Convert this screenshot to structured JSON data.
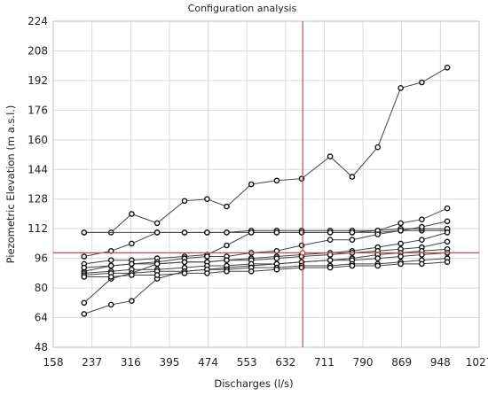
{
  "chart_data": {
    "type": "line",
    "title": "Configuration analysis",
    "xlabel": "Discharges (l/s)",
    "ylabel": "Piezometric Elevation (m a.s.l.)",
    "xlim": [
      158,
      1027
    ],
    "ylim": [
      48,
      224
    ],
    "xticks": [
      158,
      237,
      316,
      395,
      474,
      553,
      632,
      711,
      790,
      869,
      948,
      1027
    ],
    "yticks": [
      48,
      64,
      80,
      96,
      112,
      128,
      144,
      160,
      176,
      192,
      208,
      224
    ],
    "grid": true,
    "legend": "none",
    "crosshair": {
      "x": 667,
      "y": 99,
      "color": "#c0504d"
    },
    "x": [
      221,
      276,
      318,
      370,
      426,
      472,
      512,
      562,
      614,
      665,
      723,
      768,
      820,
      867,
      910,
      962
    ],
    "series": [
      {
        "values": [
          110,
          110,
          120,
          115,
          127,
          128,
          124,
          136,
          138,
          139,
          151,
          140,
          156,
          188,
          191,
          199
        ]
      },
      {
        "values": [
          110,
          null,
          null,
          110,
          110,
          110,
          110,
          110,
          110,
          110,
          110,
          110,
          110,
          111,
          111,
          111
        ]
      },
      {
        "values": [
          97,
          100,
          104,
          110,
          110,
          110,
          110,
          111,
          111,
          111,
          111,
          111,
          111,
          112,
          112,
          112
        ]
      },
      {
        "values": [
          93,
          95,
          95,
          96,
          97,
          98,
          103,
          110,
          110,
          110,
          110,
          110,
          111,
          115,
          117,
          123
        ]
      },
      {
        "values": [
          89,
          92,
          93,
          94,
          96,
          97,
          97,
          99,
          100,
          103,
          106,
          106,
          109,
          111,
          113,
          116
        ]
      },
      {
        "values": [
          72,
          85,
          88,
          93,
          94,
          94,
          95,
          96,
          97,
          98,
          99,
          100,
          102,
          104,
          106,
          110
        ]
      },
      {
        "values": [
          91,
          92,
          93,
          93,
          94,
          94,
          95,
          95,
          96,
          97,
          98,
          99,
          100,
          101,
          102,
          105
        ]
      },
      {
        "values": [
          66,
          71,
          73,
          85,
          89,
          90,
          91,
          92,
          93,
          94,
          95,
          96,
          98,
          99,
          100,
          101
        ]
      },
      {
        "values": [
          88,
          89,
          90,
          90,
          91,
          92,
          92,
          93,
          93,
          94,
          95,
          95,
          96,
          97,
          98,
          99
        ]
      },
      {
        "values": [
          87,
          88,
          88,
          89,
          89,
          90,
          90,
          91,
          91,
          92,
          92,
          93,
          93,
          94,
          95,
          96
        ]
      },
      {
        "values": [
          86,
          86,
          87,
          87,
          88,
          88,
          89,
          89,
          90,
          91,
          91,
          92,
          92,
          93,
          93,
          94
        ]
      }
    ],
    "colors": {
      "line": "#444444",
      "marker_fill": "#ffffff",
      "marker_stroke": "#111111",
      "grid": "#d9d9d9",
      "crosshair": "#c0504d"
    }
  }
}
